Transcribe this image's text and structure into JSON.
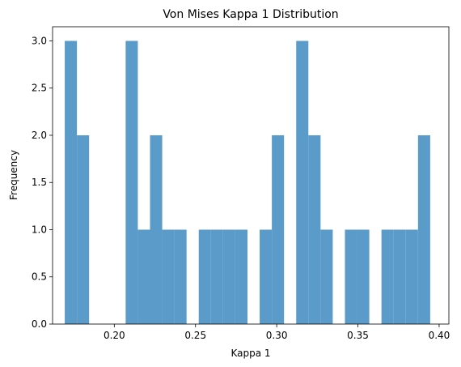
{
  "chart_data": {
    "type": "bar",
    "title": "Von Mises Kappa 1 Distribution",
    "xlabel": "Kappa 1",
    "ylabel": "Frequency",
    "xlim": [
      0.162,
      0.406
    ],
    "ylim": [
      0,
      3.15
    ],
    "grid": false,
    "bar_color": "#5a9bc9",
    "x_ticks": [
      {
        "value": 0.2,
        "label": "0.20"
      },
      {
        "value": 0.25,
        "label": "0.25"
      },
      {
        "value": 0.3,
        "label": "0.30"
      },
      {
        "value": 0.35,
        "label": "0.35"
      },
      {
        "value": 0.4,
        "label": "0.40"
      }
    ],
    "y_ticks": [
      {
        "value": 0.0,
        "label": "0.0"
      },
      {
        "value": 0.5,
        "label": "0.5"
      },
      {
        "value": 1.0,
        "label": "1.0"
      },
      {
        "value": 1.5,
        "label": "1.5"
      },
      {
        "value": 2.0,
        "label": "2.0"
      },
      {
        "value": 2.5,
        "label": "2.5"
      },
      {
        "value": 3.0,
        "label": "3.0"
      }
    ],
    "bin_start": 0.1695,
    "bin_end": 0.3945,
    "counts": [
      3,
      2,
      0,
      0,
      0,
      3,
      1,
      2,
      1,
      1,
      0,
      1,
      1,
      1,
      1,
      0,
      1,
      2,
      0,
      3,
      2,
      1,
      0,
      1,
      1,
      0,
      1,
      1,
      1,
      2
    ]
  }
}
